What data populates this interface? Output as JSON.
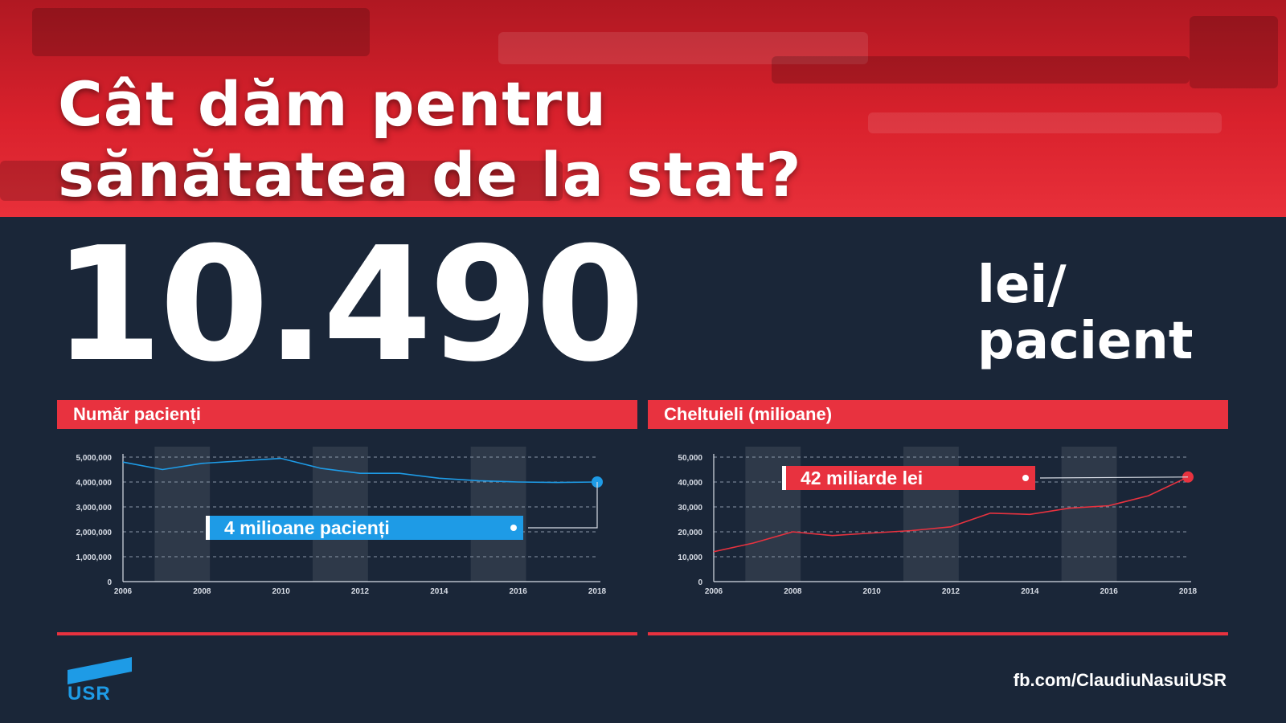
{
  "header": {
    "title_line1": "Cât dăm pentru",
    "title_line2": "sănătatea de la stat?"
  },
  "headline": {
    "value": "10.490",
    "unit_line1": "lei/",
    "unit_line2": "pacient"
  },
  "colors": {
    "accent_red": "#e8323f",
    "background": "#1a2638",
    "patients_line": "#1e9be6",
    "spending_line": "#e8323f"
  },
  "chart_data": [
    {
      "type": "line",
      "title": "Număr pacienți",
      "x": [
        2006,
        2007,
        2008,
        2009,
        2010,
        2011,
        2012,
        2013,
        2014,
        2015,
        2016,
        2017,
        2018
      ],
      "xticks": [
        "2006",
        "2008",
        "2010",
        "2012",
        "2014",
        "2016",
        "2018"
      ],
      "yticks": [
        "0",
        "1,000,000",
        "2,000,000",
        "3,000,000",
        "4,000,000",
        "5,000,000"
      ],
      "ylim": [
        0,
        5000000
      ],
      "series": [
        {
          "values": [
            4800000,
            4500000,
            4750000,
            4850000,
            4950000,
            4550000,
            4350000,
            4350000,
            4150000,
            4050000,
            4000000,
            3980000,
            4000000
          ]
        }
      ],
      "grid": true,
      "shaded_bands": [
        [
          2007,
          2008
        ],
        [
          2011,
          2012
        ],
        [
          2015,
          2016
        ]
      ],
      "annotation": {
        "text": "4 milioane pacienți",
        "x": 2018,
        "y": 4000000
      }
    },
    {
      "type": "line",
      "title": "Cheltuieli (milioane)",
      "x": [
        2006,
        2007,
        2008,
        2009,
        2010,
        2011,
        2012,
        2013,
        2014,
        2015,
        2016,
        2017,
        2018
      ],
      "xticks": [
        "2006",
        "2008",
        "2010",
        "2012",
        "2014",
        "2016",
        "2018"
      ],
      "yticks": [
        "0",
        "10,000",
        "20,000",
        "30,000",
        "40,000",
        "50,000"
      ],
      "ylim": [
        0,
        50000
      ],
      "series": [
        {
          "values": [
            12000,
            15500,
            20000,
            18500,
            19500,
            20500,
            22000,
            27500,
            27000,
            29500,
            30500,
            34500,
            42000
          ]
        }
      ],
      "grid": true,
      "shaded_bands": [
        [
          2007,
          2008
        ],
        [
          2011,
          2012
        ],
        [
          2015,
          2016
        ]
      ],
      "annotation": {
        "text": "42 miliarde lei",
        "x": 2018,
        "y": 42000
      }
    }
  ],
  "footer": {
    "logo_text": "USR",
    "link": "fb.com/ClaudiuNasuiUSR"
  }
}
